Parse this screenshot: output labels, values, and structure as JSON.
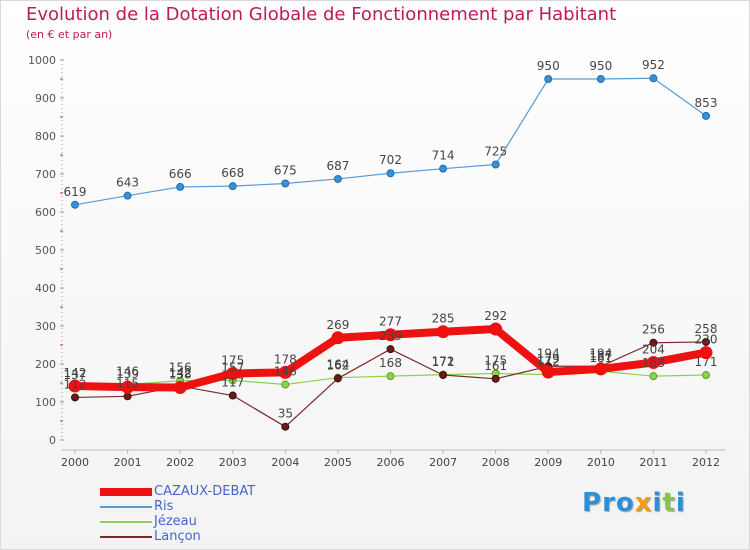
{
  "header": {
    "title": "Evolution de la Dotation Globale de Fonctionnement par Habitant",
    "subtitle": "(en € et par an)"
  },
  "logo": {
    "text": "Proxiti",
    "letters": [
      "P",
      "r",
      "o",
      "x",
      "i",
      "t",
      "i"
    ]
  },
  "colors": {
    "title": "#c2185b",
    "legend_text": "#4466cc",
    "axis": "#777777"
  },
  "chart_data": {
    "type": "line",
    "title": "Evolution de la Dotation Globale de Fonctionnement par Habitant",
    "subtitle": "(en € et par an)",
    "xlabel": "",
    "ylabel": "",
    "categories": [
      "2000",
      "2001",
      "2002",
      "2003",
      "2004",
      "2005",
      "2006",
      "2007",
      "2008",
      "2009",
      "2010",
      "2011",
      "2012"
    ],
    "ylim": [
      0,
      1000
    ],
    "yticks": [
      0,
      100,
      200,
      300,
      400,
      500,
      600,
      700,
      800,
      900,
      1000
    ],
    "grid": false,
    "legend_position": "bottom-left",
    "series": [
      {
        "name": "CAZAUX-DEBAT",
        "color": "#ee1111",
        "values": [
          142,
          139,
          138,
          175,
          178,
          269,
          277,
          285,
          292,
          179,
          187,
          204,
          230
        ],
        "labels": [
          "142",
          "139",
          "138",
          "175",
          "178",
          "269",
          "277",
          "285",
          "292",
          "179",
          "187",
          "204",
          "230"
        ]
      },
      {
        "name": "Ris",
        "color": "#5b9bd5",
        "values": [
          619,
          643,
          666,
          668,
          675,
          687,
          702,
          714,
          725,
          950,
          950,
          952,
          853
        ],
        "labels": [
          "619",
          "643",
          "666",
          "668",
          "675",
          "687",
          "702",
          "714",
          "725",
          "950",
          "950",
          "952",
          "853"
        ]
      },
      {
        "name": "Jézeau",
        "color": "#8fd14f",
        "values": [
          137,
          146,
          156,
          157,
          146,
          164,
          168,
          172,
          175,
          172,
          181,
          168,
          171
        ],
        "labels": [
          "137",
          "146",
          "156",
          "157",
          "146",
          "164",
          "168",
          "172",
          "175",
          "172",
          "181",
          "168",
          "171"
        ]
      },
      {
        "name": "Lançon",
        "color": "#7a2a2a",
        "values": [
          112,
          115,
          142,
          117,
          35,
          162,
          239,
          171,
          161,
          194,
          194,
          256,
          258
        ],
        "labels": [
          "112",
          "115",
          "142",
          "117",
          "35",
          "162",
          "239",
          "171",
          "161",
          "194",
          "194",
          "256",
          "258"
        ]
      }
    ]
  }
}
